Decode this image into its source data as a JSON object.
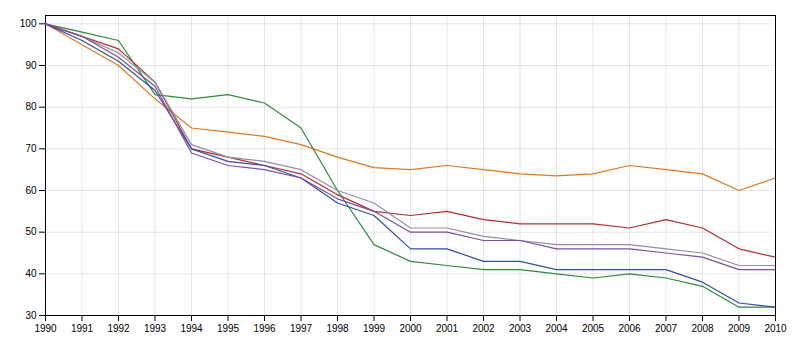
{
  "chart_data": {
    "type": "line",
    "x": [
      1990,
      1991,
      1992,
      1993,
      1994,
      1995,
      1996,
      1997,
      1998,
      1999,
      2000,
      2001,
      2002,
      2003,
      2004,
      2005,
      2006,
      2007,
      2008,
      2009,
      2010
    ],
    "series": [
      {
        "color": "#E07820",
        "values": [
          100,
          95,
          90,
          82,
          75,
          74,
          73,
          71,
          68,
          65.5,
          65,
          66,
          65,
          64,
          63.5,
          64,
          66,
          65,
          64,
          60,
          63
        ]
      },
      {
        "color": "#2E8B3A",
        "values": [
          100,
          98,
          96,
          83,
          82,
          83,
          81,
          75,
          60,
          47,
          43,
          42,
          41,
          41,
          40,
          39,
          40,
          39,
          37,
          32,
          32
        ]
      },
      {
        "color": "#B03030",
        "values": [
          100,
          97,
          94,
          86,
          70,
          68,
          66,
          64,
          59,
          55,
          54,
          55,
          53,
          52,
          52,
          52,
          51,
          53,
          51,
          46,
          44
        ]
      },
      {
        "color": "#9090A0",
        "values": [
          100,
          97,
          93,
          86,
          71,
          68,
          67,
          65,
          60,
          57,
          51,
          51,
          49,
          48,
          47,
          47,
          47,
          46,
          45,
          42,
          42
        ]
      },
      {
        "color": "#3050A0",
        "values": [
          100,
          96,
          91,
          84,
          70,
          67,
          66,
          63,
          57,
          54,
          46,
          46,
          43,
          43,
          41,
          41,
          41,
          41,
          38,
          33,
          32
        ]
      },
      {
        "color": "#7B4F9E",
        "values": [
          100,
          97,
          92,
          85,
          69,
          66,
          65,
          63,
          58,
          55,
          50,
          50,
          48,
          48,
          46,
          46,
          46,
          45,
          44,
          41,
          41
        ]
      }
    ],
    "xlim": [
      1990,
      2010
    ],
    "ylim": [
      30,
      102
    ],
    "xticks": [
      1990,
      1991,
      1992,
      1993,
      1994,
      1995,
      1996,
      1997,
      1998,
      1999,
      2000,
      2001,
      2002,
      2003,
      2004,
      2005,
      2006,
      2007,
      2008,
      2009,
      2010
    ],
    "yticks": [
      30,
      40,
      50,
      60,
      70,
      80,
      90,
      100
    ],
    "grid": true
  }
}
